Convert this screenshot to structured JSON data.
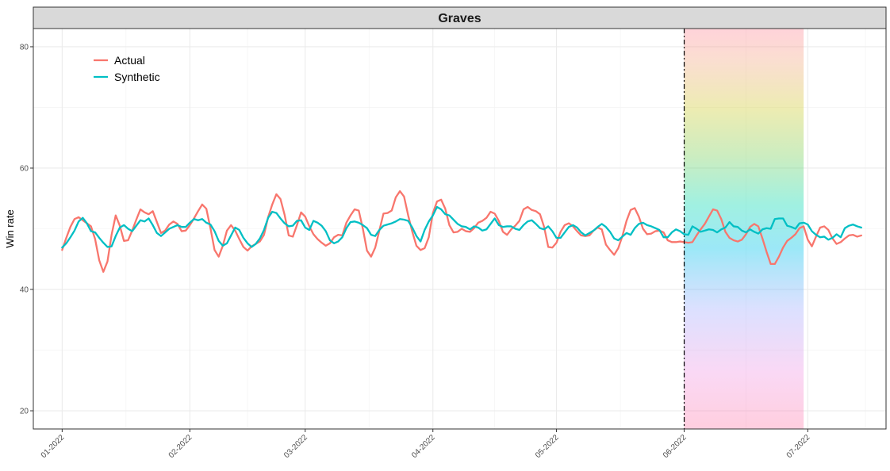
{
  "chart_data": {
    "type": "line",
    "title": "Graves",
    "xlabel": "",
    "ylabel": "Win rate",
    "ylim": [
      17,
      83
    ],
    "y_ticks": [
      20,
      40,
      60,
      80
    ],
    "x_range_days": [
      -7,
      200
    ],
    "x_ticks": [
      {
        "label": "01-2022",
        "day": 0
      },
      {
        "label": "02-2022",
        "day": 31
      },
      {
        "label": "03-2022",
        "day": 59
      },
      {
        "label": "04-2022",
        "day": 90
      },
      {
        "label": "05-2022",
        "day": 120
      },
      {
        "label": "06-2022",
        "day": 151
      },
      {
        "label": "07-2022",
        "day": 181
      }
    ],
    "x_minor_days": [
      15.5,
      45,
      74.5,
      105,
      135.5,
      166,
      195
    ],
    "grid": true,
    "legend_position": "top-left",
    "intervention": {
      "start_day": 151,
      "end_day": 180,
      "line_style": "dashed",
      "line_color": "#000000"
    },
    "band_gradient": [
      "#ff6b9d",
      "#f5d1e0",
      "#8ec8f5",
      "#7fe0d4",
      "#d8dd70",
      "#f3b38a",
      "#ff9ba4"
    ],
    "series": [
      {
        "name": "Actual",
        "color": "#F8766D",
        "values": [
          46.5,
          48.5,
          50.3,
          51.6,
          51.9,
          51.4,
          50.9,
          50.4,
          48.3,
          44.8,
          42.9,
          44.6,
          49.0,
          52.2,
          50.5,
          48.0,
          48.1,
          49.7,
          51.5,
          53.2,
          52.7,
          52.4,
          52.9,
          51.1,
          49.3,
          49.7,
          50.7,
          51.2,
          50.8,
          49.6,
          49.7,
          50.6,
          51.7,
          52.9,
          54.0,
          53.3,
          50.1,
          46.5,
          45.4,
          47.2,
          49.7,
          50.6,
          49.7,
          48.3,
          47.0,
          46.4,
          47.1,
          47.5,
          47.9,
          49.0,
          51.9,
          54.0,
          55.7,
          54.9,
          52.3,
          48.9,
          48.7,
          50.6,
          52.7,
          52.0,
          50.4,
          49.1,
          48.3,
          47.7,
          47.2,
          47.6,
          48.6,
          49.0,
          48.9,
          51.0,
          52.2,
          53.2,
          53.0,
          50.0,
          46.4,
          45.4,
          46.9,
          49.7,
          52.5,
          52.6,
          53.0,
          55.2,
          56.2,
          55.3,
          52.2,
          49.5,
          47.2,
          46.5,
          46.8,
          48.6,
          52.6,
          54.5,
          54.8,
          53.3,
          50.6,
          49.4,
          49.5,
          50.0,
          49.6,
          49.5,
          50.1,
          51.0,
          51.3,
          51.8,
          52.8,
          52.5,
          51.3,
          49.5,
          49.0,
          49.9,
          50.5,
          51.3,
          53.2,
          53.6,
          53.1,
          52.9,
          52.4,
          50.3,
          47.0,
          46.9,
          47.7,
          49.5,
          50.6,
          50.9,
          50.4,
          49.6,
          48.9,
          48.8,
          48.9,
          49.7,
          50.2,
          49.9,
          47.4,
          46.5,
          45.7,
          46.8,
          48.8,
          51.3,
          53.1,
          53.4,
          52.0,
          50.0,
          49.1,
          49.2,
          49.6,
          49.7,
          49.4,
          48.1,
          47.8,
          47.8,
          47.9,
          47.8,
          47.7,
          47.8,
          48.9,
          49.9,
          50.8,
          52.0,
          53.2,
          53.0,
          51.6,
          49.5,
          48.5,
          48.1,
          47.9,
          48.2,
          49.1,
          50.3,
          50.8,
          50.4,
          48.4,
          46.2,
          44.2,
          44.2,
          45.4,
          46.9,
          48.0,
          48.5,
          49.1,
          50.1,
          50.4,
          48.2,
          47.1,
          48.7,
          50.2,
          50.4,
          49.8,
          48.4,
          47.5,
          47.8,
          48.4,
          48.9,
          49.0,
          48.7,
          48.9
        ]
      },
      {
        "name": "Synthetic",
        "color": "#00BFC4",
        "values": [
          46.9,
          47.6,
          48.6,
          49.7,
          51.2,
          51.8,
          50.9,
          49.6,
          49.4,
          48.5,
          47.7,
          47.0,
          47.1,
          48.8,
          50.2,
          50.6,
          50.0,
          49.6,
          50.5,
          51.4,
          51.2,
          51.7,
          50.6,
          49.3,
          48.8,
          49.4,
          50.0,
          50.3,
          50.6,
          50.3,
          50.3,
          51.0,
          51.6,
          51.4,
          51.6,
          51.0,
          50.7,
          49.6,
          48.0,
          47.2,
          47.6,
          48.9,
          50.2,
          49.8,
          48.5,
          47.6,
          47.0,
          47.5,
          48.4,
          49.8,
          51.8,
          52.8,
          52.6,
          51.7,
          50.9,
          50.4,
          50.5,
          51.3,
          51.4,
          50.2,
          49.8,
          51.3,
          51.0,
          50.5,
          49.6,
          48.1,
          47.6,
          47.9,
          48.6,
          50.1,
          51.1,
          51.2,
          51.0,
          50.6,
          50.1,
          49.0,
          48.8,
          49.8,
          50.5,
          50.7,
          50.9,
          51.2,
          51.6,
          51.5,
          51.3,
          50.2,
          48.8,
          47.9,
          49.8,
          51.2,
          52.2,
          53.6,
          53.2,
          52.4,
          52.2,
          51.5,
          50.8,
          50.4,
          50.3,
          49.9,
          50.4,
          50.2,
          49.7,
          49.9,
          50.8,
          51.7,
          50.6,
          50.3,
          50.4,
          50.4,
          50.0,
          49.8,
          50.6,
          51.2,
          51.4,
          50.8,
          50.1,
          49.9,
          50.4,
          49.6,
          48.5,
          48.5,
          49.4,
          50.3,
          50.6,
          50.2,
          49.4,
          48.9,
          49.3,
          49.7,
          50.3,
          50.8,
          50.3,
          49.5,
          48.4,
          48.1,
          48.7,
          49.3,
          49.0,
          50.1,
          50.8,
          51.0,
          50.6,
          50.4,
          50.1,
          49.8,
          48.6,
          48.6,
          49.4,
          49.9,
          49.6,
          49.1,
          49.0,
          50.4,
          50.0,
          49.5,
          49.7,
          49.9,
          49.8,
          49.4,
          49.9,
          50.2,
          51.1,
          50.4,
          50.3,
          49.7,
          49.4,
          49.9,
          49.5,
          49.2,
          49.9,
          50.1,
          50.0,
          51.6,
          51.7,
          51.7,
          50.5,
          50.3,
          50.0,
          50.9,
          51.0,
          50.7,
          49.6,
          49.0,
          48.6,
          48.7,
          48.2,
          48.5,
          49.1,
          48.6,
          50.1,
          50.5,
          50.7,
          50.4,
          50.2
        ]
      }
    ]
  }
}
